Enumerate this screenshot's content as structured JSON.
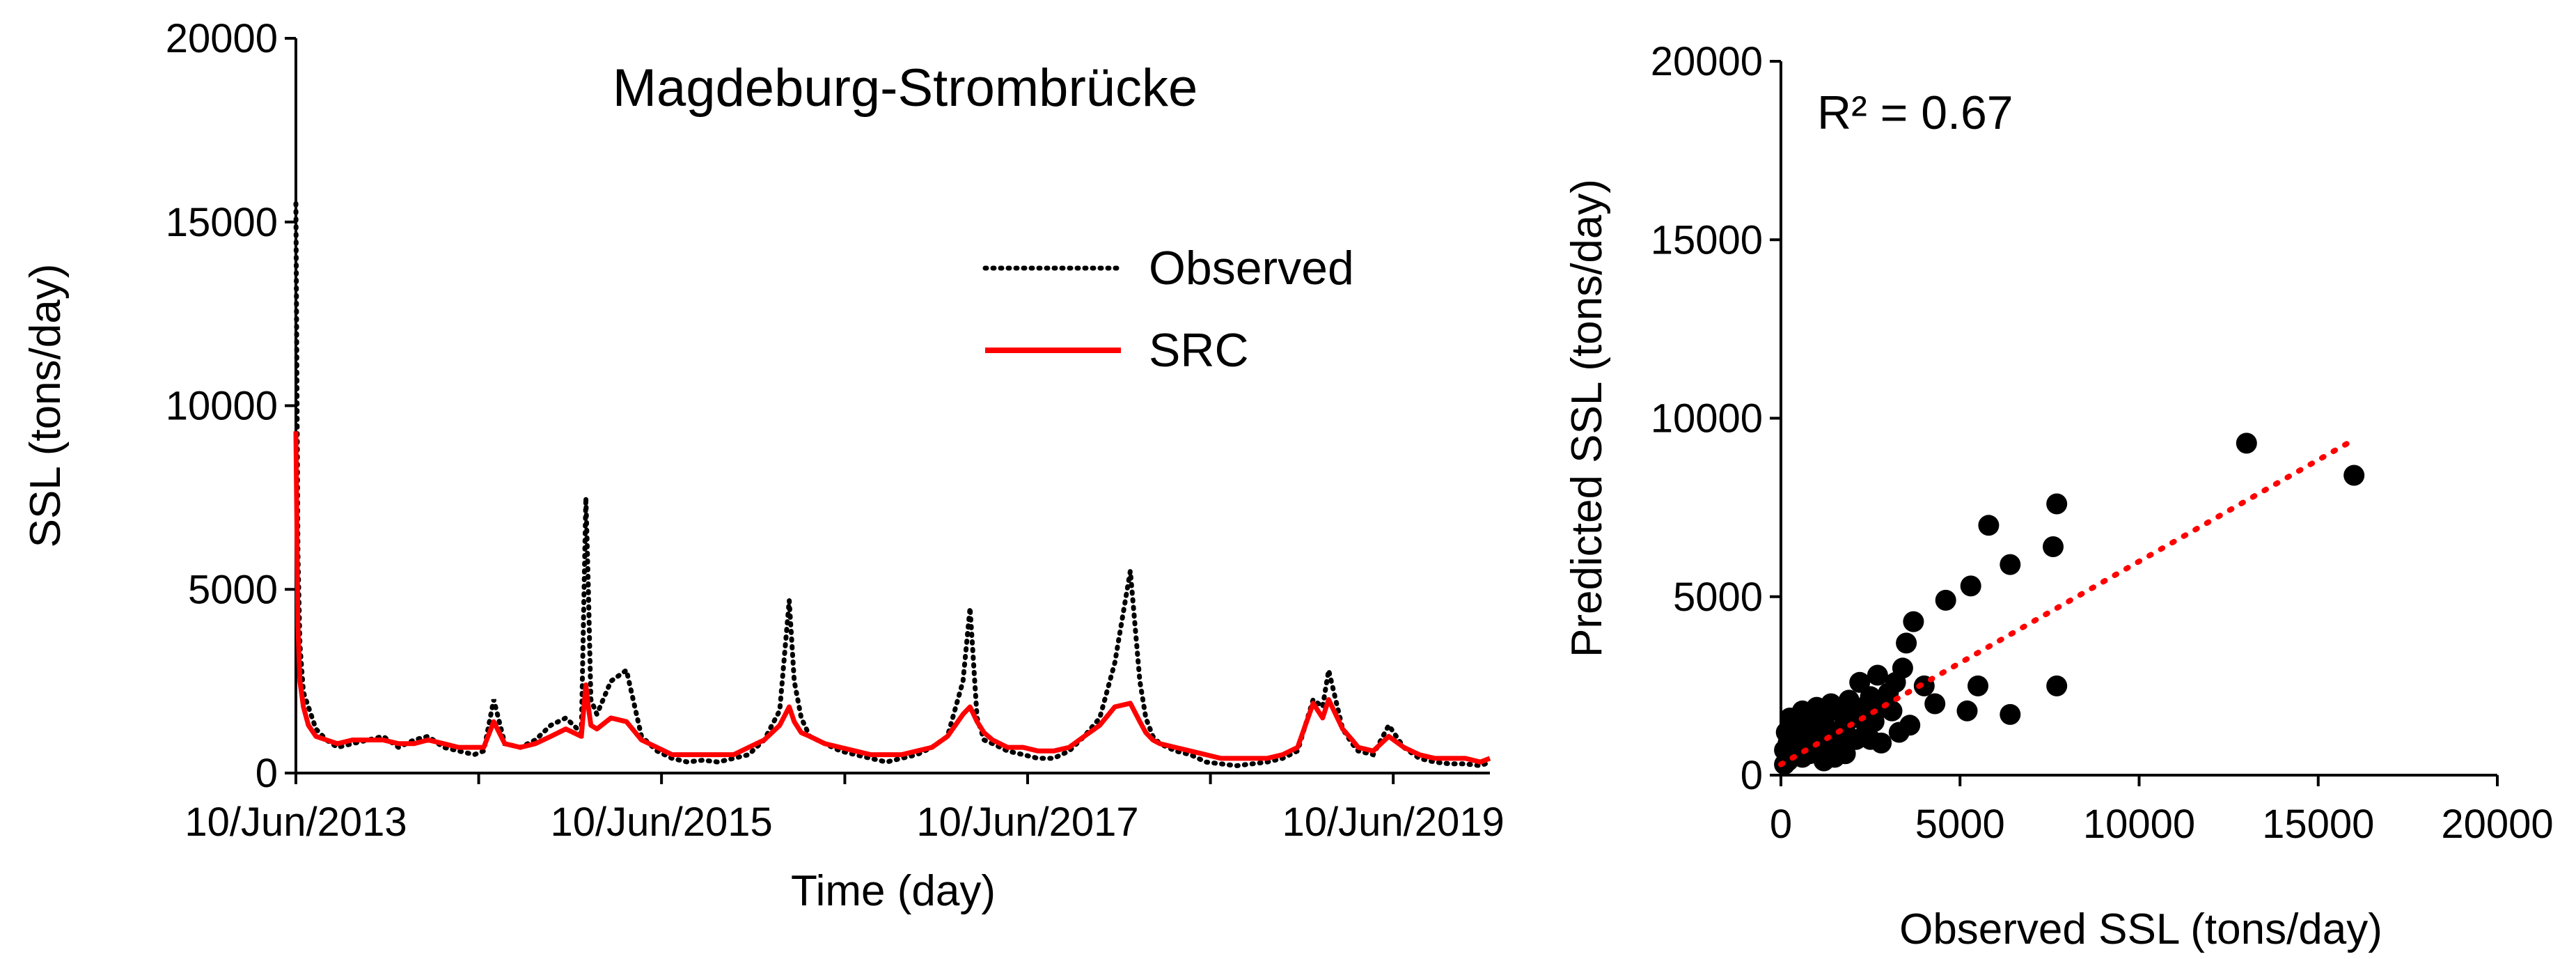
{
  "chart_data": [
    {
      "type": "line",
      "title": "Magdeburg-Strombrücke",
      "xlabel": "Time (day)",
      "ylabel": "SSL (tons/day)",
      "xlim": [
        "2013-06-10",
        "2019-12-20"
      ],
      "ylim": [
        0,
        20000
      ],
      "yticks": [
        "0",
        "5000",
        "10000",
        "15000",
        "20000"
      ],
      "xticks": [
        {
          "date": "2013-06-10",
          "label": "10/Jun/2013"
        },
        {
          "date": "2015-06-10",
          "label": "10/Jun/2015"
        },
        {
          "date": "2017-06-10",
          "label": "10/Jun/2017"
        },
        {
          "date": "2019-06-10",
          "label": "10/Jun/2019"
        }
      ],
      "legend": {
        "position": "top-right"
      },
      "series": [
        {
          "name": "Observed",
          "style": "dotted",
          "color": "#000000",
          "x": [
            "2013-06-10",
            "2013-06-14",
            "2013-06-18",
            "2013-06-25",
            "2013-07-05",
            "2013-07-20",
            "2013-08-10",
            "2013-09-01",
            "2013-10-01",
            "2013-11-01",
            "2013-12-01",
            "2014-01-01",
            "2014-02-01",
            "2014-03-01",
            "2014-04-01",
            "2014-05-01",
            "2014-06-01",
            "2014-06-20",
            "2014-07-10",
            "2014-08-01",
            "2014-09-01",
            "2014-10-01",
            "2014-11-01",
            "2014-12-01",
            "2015-01-01",
            "2015-01-10",
            "2015-01-15",
            "2015-01-20",
            "2015-02-01",
            "2015-03-01",
            "2015-04-01",
            "2015-05-01",
            "2015-06-01",
            "2015-07-01",
            "2015-08-01",
            "2015-09-01",
            "2015-10-01",
            "2015-11-01",
            "2015-12-01",
            "2016-01-01",
            "2016-02-01",
            "2016-02-20",
            "2016-03-01",
            "2016-03-15",
            "2016-04-01",
            "2016-05-01",
            "2016-06-01",
            "2016-07-01",
            "2016-08-01",
            "2016-09-01",
            "2016-10-01",
            "2016-11-01",
            "2016-12-01",
            "2017-01-01",
            "2017-02-01",
            "2017-02-15",
            "2017-03-01",
            "2017-03-15",
            "2017-04-01",
            "2017-05-01",
            "2017-06-01",
            "2017-07-01",
            "2017-08-01",
            "2017-09-01",
            "2017-10-01",
            "2017-11-01",
            "2017-12-01",
            "2018-01-01",
            "2018-01-20",
            "2018-02-01",
            "2018-02-15",
            "2018-03-01",
            "2018-04-01",
            "2018-05-01",
            "2018-06-01",
            "2018-07-01",
            "2018-08-01",
            "2018-09-01",
            "2018-10-01",
            "2018-11-01",
            "2018-12-01",
            "2019-01-01",
            "2019-01-20",
            "2019-02-01",
            "2019-03-01",
            "2019-03-20",
            "2019-04-01",
            "2019-05-01",
            "2019-06-01",
            "2019-07-01",
            "2019-08-01",
            "2019-09-01",
            "2019-10-01",
            "2019-11-01",
            "2019-12-01",
            "2019-12-20"
          ],
          "y": [
            15500,
            6000,
            3500,
            2200,
            1800,
            1200,
            900,
            700,
            800,
            900,
            1000,
            700,
            900,
            1000,
            700,
            600,
            500,
            600,
            2000,
            800,
            700,
            900,
            1300,
            1500,
            1100,
            7500,
            5000,
            2000,
            1600,
            2500,
            2800,
            1000,
            600,
            400,
            300,
            350,
            300,
            400,
            500,
            900,
            1700,
            4700,
            2500,
            1500,
            1000,
            800,
            600,
            500,
            400,
            300,
            400,
            500,
            700,
            1000,
            2500,
            4500,
            1500,
            900,
            800,
            600,
            500,
            400,
            400,
            600,
            1000,
            1500,
            3000,
            5500,
            2500,
            1500,
            1000,
            800,
            600,
            500,
            300,
            250,
            200,
            250,
            300,
            400,
            600,
            2000,
            1800,
            2800,
            1200,
            800,
            600,
            500,
            1300,
            700,
            400,
            300,
            250,
            250,
            200,
            300
          ]
        },
        {
          "name": "SRC",
          "style": "solid",
          "color": "#ff0000",
          "x": [
            "2013-06-10",
            "2013-06-14",
            "2013-06-18",
            "2013-06-25",
            "2013-07-05",
            "2013-07-20",
            "2013-08-10",
            "2013-09-01",
            "2013-10-01",
            "2013-11-01",
            "2013-12-01",
            "2014-01-01",
            "2014-02-01",
            "2014-03-01",
            "2014-04-01",
            "2014-05-01",
            "2014-06-01",
            "2014-06-20",
            "2014-07-10",
            "2014-08-01",
            "2014-09-01",
            "2014-10-01",
            "2014-11-01",
            "2014-12-01",
            "2015-01-01",
            "2015-01-10",
            "2015-01-15",
            "2015-01-20",
            "2015-02-01",
            "2015-03-01",
            "2015-04-01",
            "2015-05-01",
            "2015-06-01",
            "2015-07-01",
            "2015-08-01",
            "2015-09-01",
            "2015-10-01",
            "2015-11-01",
            "2015-12-01",
            "2016-01-01",
            "2016-02-01",
            "2016-02-20",
            "2016-03-01",
            "2016-03-15",
            "2016-04-01",
            "2016-05-01",
            "2016-06-01",
            "2016-07-01",
            "2016-08-01",
            "2016-09-01",
            "2016-10-01",
            "2016-11-01",
            "2016-12-01",
            "2017-01-01",
            "2017-02-01",
            "2017-02-15",
            "2017-03-01",
            "2017-03-15",
            "2017-04-01",
            "2017-05-01",
            "2017-06-01",
            "2017-07-01",
            "2017-08-01",
            "2017-09-01",
            "2017-10-01",
            "2017-11-01",
            "2017-12-01",
            "2018-01-01",
            "2018-01-20",
            "2018-02-01",
            "2018-02-15",
            "2018-03-01",
            "2018-04-01",
            "2018-05-01",
            "2018-06-01",
            "2018-07-01",
            "2018-08-01",
            "2018-09-01",
            "2018-10-01",
            "2018-11-01",
            "2018-12-01",
            "2019-01-01",
            "2019-01-20",
            "2019-02-01",
            "2019-03-01",
            "2019-03-20",
            "2019-04-01",
            "2019-05-01",
            "2019-06-01",
            "2019-07-01",
            "2019-08-01",
            "2019-09-01",
            "2019-10-01",
            "2019-11-01",
            "2019-12-01",
            "2019-12-20"
          ],
          "y": [
            9300,
            4000,
            2500,
            1800,
            1300,
            1000,
            900,
            800,
            900,
            900,
            900,
            800,
            800,
            900,
            800,
            700,
            700,
            700,
            1400,
            800,
            700,
            800,
            1000,
            1200,
            1000,
            2400,
            1800,
            1300,
            1200,
            1500,
            1400,
            900,
            700,
            500,
            500,
            500,
            500,
            500,
            700,
            900,
            1300,
            1800,
            1400,
            1100,
            1000,
            800,
            700,
            600,
            500,
            500,
            500,
            600,
            700,
            1000,
            1600,
            1800,
            1400,
            1100,
            900,
            700,
            700,
            600,
            600,
            700,
            1000,
            1300,
            1800,
            1900,
            1400,
            1100,
            900,
            800,
            700,
            600,
            500,
            400,
            400,
            400,
            400,
            500,
            700,
            1900,
            1500,
            2000,
            1200,
            900,
            700,
            600,
            1000,
            700,
            500,
            400,
            400,
            400,
            300,
            400
          ]
        }
      ]
    },
    {
      "type": "scatter",
      "xlabel": "Observed SSL (tons/day)",
      "ylabel": "Predicted SSL (tons/day)",
      "xlim": [
        0,
        20000
      ],
      "ylim": [
        0,
        20000
      ],
      "xticks": [
        "0",
        "5000",
        "10000",
        "15000",
        "20000"
      ],
      "yticks": [
        "0",
        "5000",
        "10000",
        "15000",
        "20000"
      ],
      "annotation": "R² = 0.67",
      "trendline": {
        "style": "dotted",
        "color": "#ff0000",
        "x": [
          0,
          16000
        ],
        "y": [
          300,
          9400
        ]
      },
      "points": [
        [
          16000,
          8400
        ],
        [
          13000,
          9300
        ],
        [
          7700,
          7600
        ],
        [
          7600,
          6400
        ],
        [
          7700,
          2500
        ],
        [
          5800,
          7000
        ],
        [
          6400,
          5900
        ],
        [
          6400,
          1700
        ],
        [
          5300,
          5300
        ],
        [
          5500,
          2500
        ],
        [
          5200,
          1800
        ],
        [
          4600,
          4900
        ],
        [
          4300,
          2000
        ],
        [
          4000,
          2500
        ],
        [
          3700,
          4300
        ],
        [
          3500,
          3700
        ],
        [
          3400,
          3000
        ],
        [
          3200,
          2600
        ],
        [
          3000,
          2300
        ],
        [
          2900,
          1900
        ],
        [
          2700,
          2800
        ],
        [
          2600,
          1500
        ],
        [
          2500,
          2200
        ],
        [
          2400,
          1300
        ],
        [
          2300,
          1900
        ],
        [
          2200,
          2600
        ],
        [
          2100,
          1000
        ],
        [
          2000,
          1700
        ],
        [
          1900,
          2100
        ],
        [
          1800,
          1400
        ],
        [
          1700,
          800
        ],
        [
          1600,
          1800
        ],
        [
          1500,
          1200
        ],
        [
          1400,
          2000
        ],
        [
          1300,
          1000
        ],
        [
          1200,
          1500
        ],
        [
          1100,
          700
        ],
        [
          1000,
          1300
        ],
        [
          1000,
          1900
        ],
        [
          900,
          900
        ],
        [
          800,
          1600
        ],
        [
          800,
          600
        ],
        [
          700,
          1100
        ],
        [
          600,
          1800
        ],
        [
          600,
          500
        ],
        [
          500,
          1000
        ],
        [
          500,
          1500
        ],
        [
          400,
          800
        ],
        [
          400,
          1300
        ],
        [
          300,
          600
        ],
        [
          300,
          1100
        ],
        [
          250,
          1600
        ],
        [
          200,
          400
        ],
        [
          200,
          900
        ],
        [
          150,
          1200
        ],
        [
          100,
          300
        ],
        [
          100,
          700
        ],
        [
          3600,
          1400
        ],
        [
          3300,
          1200
        ],
        [
          2800,
          900
        ],
        [
          2500,
          1000
        ],
        [
          1800,
          600
        ],
        [
          1500,
          500
        ],
        [
          1200,
          400
        ],
        [
          2200,
          1600
        ],
        [
          1700,
          1300
        ],
        [
          3100,
          1800
        ],
        [
          2600,
          2000
        ]
      ]
    }
  ]
}
